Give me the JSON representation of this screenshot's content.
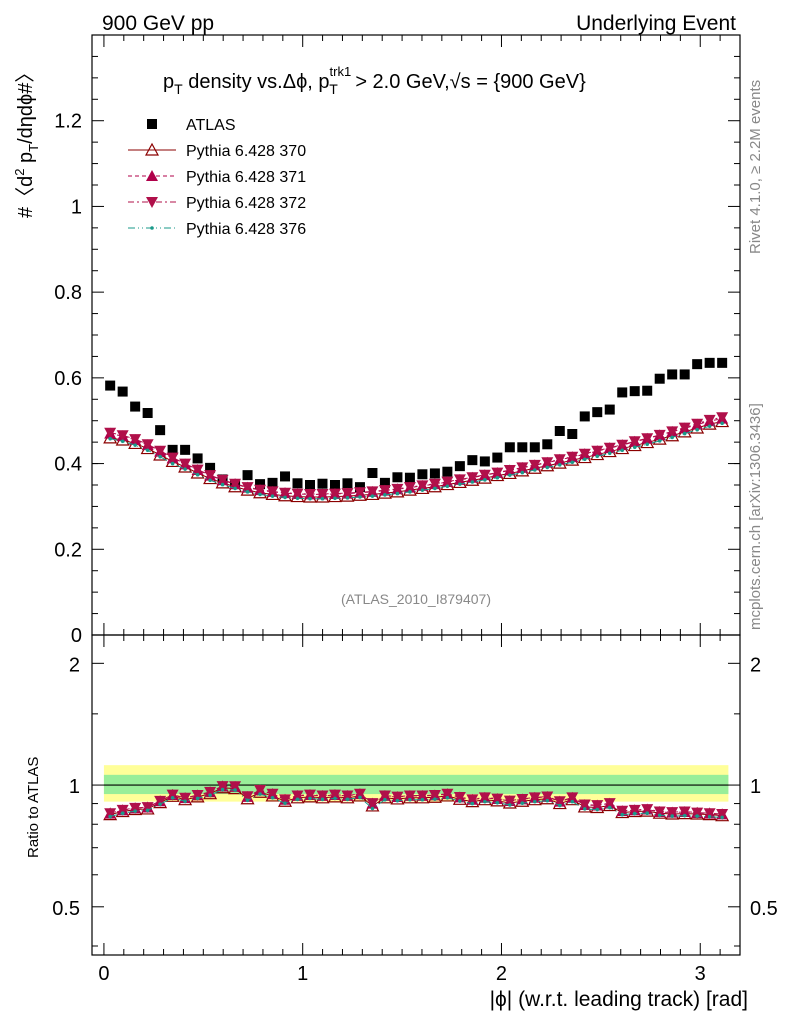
{
  "header": {
    "left": "900 GeV pp",
    "right": "Underlying Event"
  },
  "side_text": {
    "rivet": "Rivet 4.1.0, ≥ 2.2M events",
    "mcplots": "mcplots.cern.ch [arXiv:1306.3436]"
  },
  "watermark": "(ATLAS_2010_I879407)",
  "title": {
    "p": "p",
    "T": "T",
    "mid": " density vs.Δϕ, p",
    "sup": "trk1",
    "sub2": "T",
    "rest": " > 2.0 GeV,",
    "sqrt": "√s",
    "tail": " = {900 GeV}"
  },
  "ylabel_main": {
    "a": "#〈d",
    "b": "2",
    "c": " p",
    "d": "T",
    "e": "/dηdϕ#〉"
  },
  "ylabel_ratio": "Ratio to ATLAS",
  "xlabel": "|ϕ| (w.r.t. leading track) [rad]",
  "legend": [
    {
      "label": "ATLAS",
      "color": "#000000",
      "marker": "square"
    },
    {
      "label": "Pythia 6.428 370",
      "color": "#8b0000",
      "marker": "triangle-open"
    },
    {
      "label": "Pythia 6.428 371",
      "color": "#b0004a",
      "marker": "triangle-up"
    },
    {
      "label": "Pythia 6.428 372",
      "color": "#b0104a",
      "marker": "triangle-down"
    },
    {
      "label": "Pythia 6.428 376",
      "color": "#1a9a8a",
      "marker": "dot"
    }
  ],
  "chart_data": [
    {
      "type": "scatter",
      "panel": "main",
      "xlim": [
        -0.06,
        3.2
      ],
      "ylim": [
        0,
        1.4
      ],
      "yticks": [
        0,
        0.2,
        0.4,
        0.6,
        0.8,
        1,
        1.2
      ],
      "ytick_labels": [
        "0",
        "0.2",
        "0.4",
        "0.6",
        "0.8",
        "1",
        "1.2"
      ],
      "series": [
        {
          "name": "ATLAS",
          "values": [
            0.582,
            0.568,
            0.533,
            0.518,
            0.478,
            0.432,
            0.432,
            0.412,
            0.39,
            0.363,
            0.352,
            0.373,
            0.352,
            0.355,
            0.37,
            0.354,
            0.35,
            0.353,
            0.35,
            0.354,
            0.345,
            0.378,
            0.355,
            0.368,
            0.367,
            0.375,
            0.377,
            0.381,
            0.394,
            0.408,
            0.405,
            0.414,
            0.438,
            0.438,
            0.438,
            0.445,
            0.476,
            0.469,
            0.51,
            0.52,
            0.526,
            0.566,
            0.569,
            0.57,
            0.598,
            0.608,
            0.608,
            0.632,
            0.635,
            0.635
          ]
        },
        {
          "name": "Pythia 6.428 370",
          "values": [
            0.46,
            0.455,
            0.447,
            0.435,
            0.42,
            0.405,
            0.392,
            0.378,
            0.365,
            0.355,
            0.346,
            0.338,
            0.332,
            0.328,
            0.325,
            0.323,
            0.322,
            0.322,
            0.323,
            0.324,
            0.326,
            0.328,
            0.331,
            0.334,
            0.338,
            0.342,
            0.346,
            0.351,
            0.356,
            0.361,
            0.366,
            0.372,
            0.377,
            0.383,
            0.389,
            0.395,
            0.401,
            0.408,
            0.414,
            0.421,
            0.428,
            0.435,
            0.442,
            0.449,
            0.457,
            0.465,
            0.474,
            0.483,
            0.492,
            0.498
          ]
        },
        {
          "name": "Pythia 6.428 371",
          "values": [
            0.47,
            0.464,
            0.455,
            0.443,
            0.428,
            0.412,
            0.398,
            0.385,
            0.372,
            0.361,
            0.352,
            0.344,
            0.338,
            0.334,
            0.331,
            0.329,
            0.328,
            0.328,
            0.329,
            0.33,
            0.332,
            0.334,
            0.337,
            0.34,
            0.344,
            0.348,
            0.352,
            0.357,
            0.362,
            0.367,
            0.373,
            0.378,
            0.384,
            0.39,
            0.396,
            0.402,
            0.409,
            0.415,
            0.422,
            0.429,
            0.436,
            0.443,
            0.451,
            0.458,
            0.466,
            0.474,
            0.482,
            0.491,
            0.499,
            0.505
          ]
        },
        {
          "name": "Pythia 6.428 372",
          "values": [
            0.472,
            0.466,
            0.457,
            0.445,
            0.43,
            0.414,
            0.4,
            0.386,
            0.373,
            0.362,
            0.353,
            0.345,
            0.339,
            0.335,
            0.332,
            0.33,
            0.329,
            0.329,
            0.33,
            0.331,
            0.333,
            0.335,
            0.338,
            0.341,
            0.345,
            0.349,
            0.353,
            0.358,
            0.363,
            0.368,
            0.374,
            0.379,
            0.385,
            0.391,
            0.397,
            0.403,
            0.41,
            0.416,
            0.423,
            0.43,
            0.437,
            0.444,
            0.452,
            0.459,
            0.467,
            0.475,
            0.484,
            0.493,
            0.502,
            0.508
          ]
        },
        {
          "name": "Pythia 6.428 376",
          "values": [
            0.458,
            0.452,
            0.443,
            0.431,
            0.416,
            0.4,
            0.387,
            0.374,
            0.361,
            0.351,
            0.342,
            0.334,
            0.328,
            0.324,
            0.321,
            0.319,
            0.318,
            0.318,
            0.319,
            0.32,
            0.322,
            0.324,
            0.327,
            0.33,
            0.334,
            0.338,
            0.342,
            0.347,
            0.352,
            0.357,
            0.362,
            0.367,
            0.373,
            0.379,
            0.385,
            0.391,
            0.397,
            0.403,
            0.41,
            0.417,
            0.424,
            0.431,
            0.438,
            0.445,
            0.453,
            0.461,
            0.47,
            0.479,
            0.487,
            0.494
          ]
        }
      ]
    },
    {
      "type": "scatter",
      "panel": "ratio",
      "xlim": [
        -0.06,
        3.2
      ],
      "ylim": [
        0.38,
        2.35
      ],
      "yscale": "log",
      "yticks": [
        0.5,
        1,
        2
      ],
      "ytick_labels": [
        "0.5",
        "1",
        "2"
      ],
      "xticks": [
        0,
        1,
        2,
        3
      ],
      "xtick_labels": [
        "0",
        "1",
        "2",
        "3"
      ],
      "band_yellow": [
        0.91,
        1.12
      ],
      "band_green": [
        0.95,
        1.06
      ],
      "series": [
        {
          "name": "Pythia 6.428 370",
          "values": [
            0.845,
            0.86,
            0.87,
            0.873,
            0.905,
            0.938,
            0.92,
            0.935,
            0.952,
            0.985,
            0.98,
            0.925,
            0.96,
            0.94,
            0.912,
            0.93,
            0.935,
            0.93,
            0.935,
            0.93,
            0.94,
            0.888,
            0.93,
            0.924,
            0.93,
            0.93,
            0.933,
            0.94,
            0.922,
            0.91,
            0.92,
            0.914,
            0.903,
            0.912,
            0.92,
            0.925,
            0.9,
            0.92,
            0.883,
            0.88,
            0.89,
            0.855,
            0.86,
            0.862,
            0.852,
            0.848,
            0.85,
            0.848,
            0.845,
            0.84
          ]
        },
        {
          "name": "Pythia 6.428 371",
          "values": [
            0.85,
            0.866,
            0.876,
            0.88,
            0.912,
            0.945,
            0.928,
            0.943,
            0.96,
            0.992,
            0.99,
            0.935,
            0.97,
            0.95,
            0.92,
            0.94,
            0.945,
            0.94,
            0.945,
            0.94,
            0.95,
            0.9,
            0.94,
            0.934,
            0.94,
            0.94,
            0.943,
            0.95,
            0.932,
            0.92,
            0.93,
            0.924,
            0.913,
            0.922,
            0.93,
            0.935,
            0.91,
            0.93,
            0.893,
            0.89,
            0.9,
            0.862,
            0.866,
            0.87,
            0.858,
            0.855,
            0.858,
            0.853,
            0.85,
            0.846
          ]
        },
        {
          "name": "Pythia 6.428 372",
          "values": [
            0.852,
            0.868,
            0.878,
            0.882,
            0.914,
            0.947,
            0.93,
            0.945,
            0.962,
            0.994,
            0.993,
            0.938,
            0.972,
            0.952,
            0.922,
            0.942,
            0.947,
            0.942,
            0.947,
            0.942,
            0.952,
            0.902,
            0.942,
            0.936,
            0.942,
            0.942,
            0.945,
            0.952,
            0.934,
            0.922,
            0.932,
            0.926,
            0.915,
            0.924,
            0.932,
            0.937,
            0.912,
            0.932,
            0.895,
            0.892,
            0.902,
            0.864,
            0.868,
            0.872,
            0.86,
            0.857,
            0.86,
            0.855,
            0.852,
            0.848
          ]
        },
        {
          "name": "Pythia 6.428 376",
          "values": [
            0.836,
            0.852,
            0.862,
            0.866,
            0.897,
            0.93,
            0.912,
            0.927,
            0.944,
            0.975,
            0.972,
            0.917,
            0.95,
            0.93,
            0.902,
            0.922,
            0.927,
            0.922,
            0.927,
            0.922,
            0.932,
            0.875,
            0.92,
            0.915,
            0.92,
            0.92,
            0.923,
            0.93,
            0.913,
            0.9,
            0.91,
            0.904,
            0.893,
            0.902,
            0.91,
            0.915,
            0.89,
            0.91,
            0.873,
            0.87,
            0.88,
            0.845,
            0.85,
            0.852,
            0.842,
            0.838,
            0.84,
            0.838,
            0.835,
            0.832
          ]
        }
      ]
    }
  ]
}
